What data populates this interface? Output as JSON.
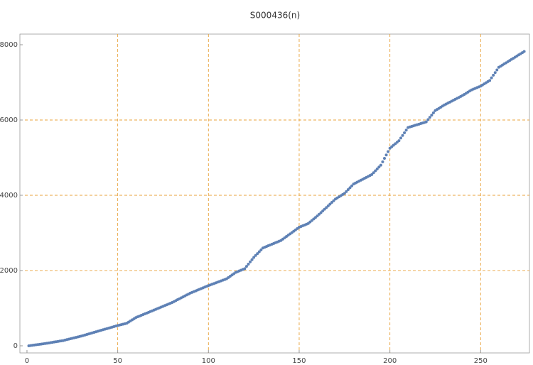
{
  "chart_data": {
    "type": "scatter",
    "title": "S000436(n)",
    "x": [
      1,
      2,
      3,
      4,
      5,
      6,
      7,
      8,
      9,
      10,
      11,
      12,
      13,
      14,
      15,
      16,
      17,
      18,
      19,
      20,
      21,
      22,
      23,
      24,
      25,
      26,
      27,
      28,
      29,
      30,
      31,
      32,
      33,
      34,
      35,
      36,
      37,
      38,
      39,
      40,
      41,
      42,
      43,
      44,
      45,
      46,
      47,
      48,
      49,
      50,
      51,
      52,
      53,
      54,
      55,
      56,
      57,
      58,
      59,
      60,
      61,
      62,
      63,
      64,
      65,
      66,
      67,
      68,
      69,
      70,
      71,
      72,
      73,
      74,
      75,
      76,
      77,
      78,
      79,
      80,
      81,
      82,
      83,
      84,
      85,
      86,
      87,
      88,
      89,
      90,
      91,
      92,
      93,
      94,
      95,
      96,
      97,
      98,
      99,
      100,
      101,
      102,
      103,
      104,
      105,
      106,
      107,
      108,
      109,
      110,
      111,
      112,
      113,
      114,
      115,
      116,
      117,
      118,
      119,
      120,
      121,
      122,
      123,
      124,
      125,
      126,
      127,
      128,
      129,
      130,
      131,
      132,
      133,
      134,
      135,
      136,
      137,
      138,
      139,
      140,
      141,
      142,
      143,
      144,
      145,
      146,
      147,
      148,
      149,
      150,
      151,
      152,
      153,
      154,
      155,
      156,
      157,
      158,
      159,
      160,
      161,
      162,
      163,
      164,
      165,
      166,
      167,
      168,
      169,
      170,
      171,
      172,
      173,
      174,
      175,
      176,
      177,
      178,
      179,
      180,
      181,
      182,
      183,
      184,
      185,
      186,
      187,
      188,
      189,
      190,
      191,
      192,
      193,
      194,
      195,
      196,
      197,
      198,
      199,
      200,
      201,
      202,
      203,
      204,
      205,
      206,
      207,
      208,
      209,
      210,
      211,
      212,
      213,
      214,
      215,
      216,
      217,
      218,
      219,
      220,
      221,
      222,
      223,
      224,
      225,
      226,
      227,
      228,
      229,
      230,
      231,
      232,
      233,
      234,
      235,
      236,
      237,
      238,
      239,
      240,
      241,
      242,
      243,
      244,
      245,
      246,
      247,
      248,
      249,
      250,
      251,
      252,
      253,
      254,
      255,
      256,
      257,
      258,
      259,
      260,
      261,
      262,
      263,
      264,
      265,
      266,
      267,
      268,
      269,
      270,
      271,
      272,
      273,
      274
    ],
    "series": [
      {
        "name": "S000436(n)",
        "color": "#5e81b5",
        "values": [
          0,
          7,
          13,
          20,
          27,
          33,
          40,
          47,
          53,
          60,
          68,
          76,
          84,
          92,
          100,
          108,
          116,
          124,
          132,
          140,
          152,
          164,
          176,
          188,
          200,
          212,
          224,
          236,
          248,
          260,
          274,
          288,
          302,
          316,
          330,
          344,
          358,
          372,
          386,
          400,
          414,
          428,
          442,
          456,
          470,
          484,
          498,
          512,
          526,
          540,
          552,
          564,
          576,
          588,
          600,
          630,
          660,
          690,
          720,
          750,
          770,
          790,
          810,
          830,
          850,
          870,
          890,
          910,
          930,
          950,
          970,
          990,
          1010,
          1030,
          1050,
          1070,
          1090,
          1110,
          1130,
          1150,
          1175,
          1200,
          1225,
          1250,
          1275,
          1300,
          1325,
          1350,
          1375,
          1400,
          1420,
          1440,
          1460,
          1480,
          1500,
          1520,
          1540,
          1560,
          1580,
          1600,
          1618,
          1636,
          1654,
          1672,
          1690,
          1708,
          1726,
          1744,
          1762,
          1780,
          1814,
          1848,
          1882,
          1916,
          1950,
          1970,
          1990,
          2010,
          2030,
          2050,
          2110,
          2170,
          2230,
          2290,
          2350,
          2400,
          2450,
          2500,
          2550,
          2600,
          2620,
          2640,
          2660,
          2680,
          2700,
          2720,
          2740,
          2760,
          2780,
          2800,
          2835,
          2870,
          2905,
          2940,
          2975,
          3010,
          3045,
          3080,
          3115,
          3150,
          3170,
          3190,
          3210,
          3230,
          3250,
          3290,
          3330,
          3370,
          3410,
          3450,
          3495,
          3540,
          3585,
          3630,
          3675,
          3720,
          3765,
          3810,
          3855,
          3900,
          3930,
          3960,
          3990,
          4020,
          4050,
          4100,
          4150,
          4200,
          4250,
          4300,
          4325,
          4350,
          4375,
          4400,
          4425,
          4450,
          4475,
          4500,
          4525,
          4550,
          4600,
          4650,
          4700,
          4750,
          4800,
          4890,
          4980,
          5070,
          5160,
          5250,
          5290,
          5330,
          5370,
          5410,
          5450,
          5520,
          5590,
          5660,
          5730,
          5800,
          5815,
          5830,
          5845,
          5860,
          5875,
          5890,
          5905,
          5920,
          5935,
          5950,
          6010,
          6070,
          6130,
          6190,
          6250,
          6280,
          6310,
          6340,
          6370,
          6400,
          6425,
          6450,
          6475,
          6500,
          6525,
          6550,
          6575,
          6600,
          6625,
          6650,
          6680,
          6710,
          6740,
          6770,
          6800,
          6820,
          6840,
          6860,
          6880,
          6900,
          6930,
          6960,
          6990,
          7020,
          7050,
          7120,
          7190,
          7260,
          7330,
          7400,
          7430,
          7460,
          7490,
          7520,
          7550,
          7580,
          7610,
          7640,
          7670,
          7700,
          7730,
          7760,
          7790,
          7820
        ]
      }
    ],
    "xlim": [
      -3.9,
      276.9
    ],
    "ylim": [
      -189,
      8283
    ],
    "xticks": [
      0,
      50,
      100,
      150,
      200,
      250
    ],
    "yticks": [
      0,
      2000,
      4000,
      6000,
      8000
    ],
    "xgrid": [
      50,
      100,
      150,
      200,
      250
    ],
    "ygrid": [
      2000,
      4000,
      6000
    ],
    "grid_color": "#e8a33c"
  }
}
